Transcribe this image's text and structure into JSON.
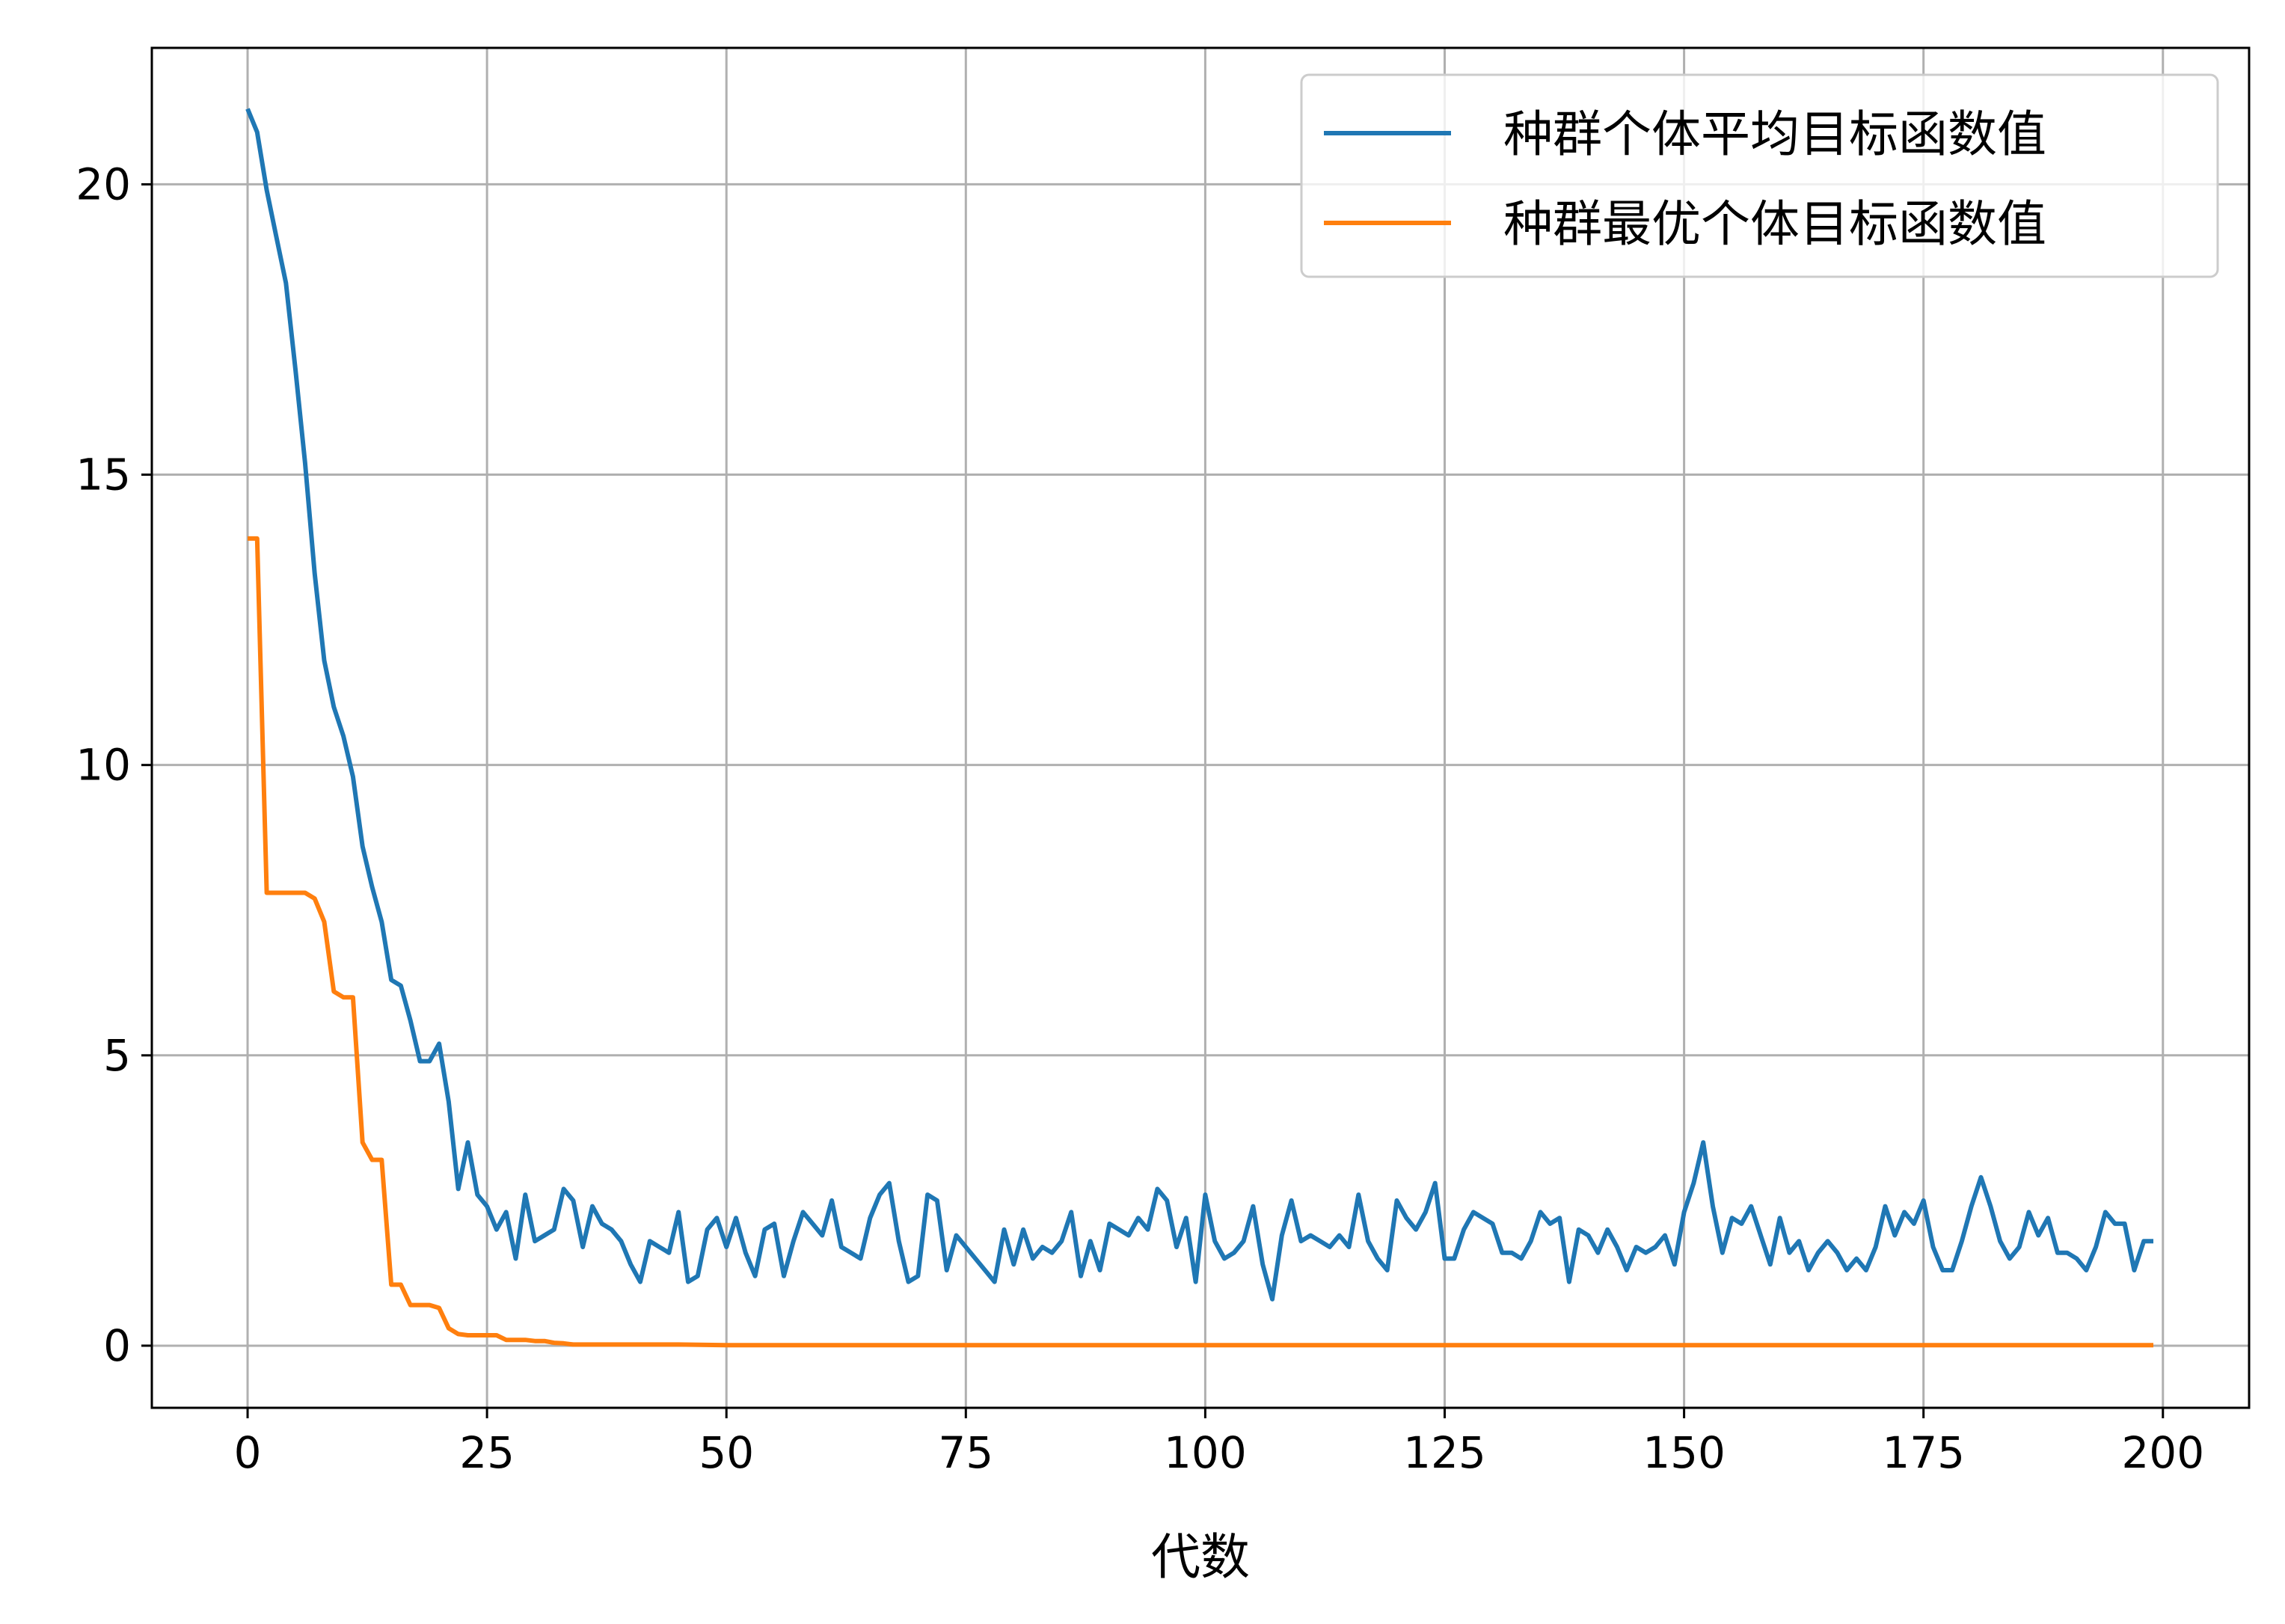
{
  "chart_data": {
    "type": "line",
    "title": "",
    "xlabel": "代数",
    "ylabel": "",
    "xlim": [
      -10,
      209
    ],
    "ylim": [
      -1.07,
      22.35
    ],
    "xticks": [
      0,
      25,
      50,
      75,
      100,
      125,
      150,
      175,
      200
    ],
    "xtick_labels": [
      "0",
      "25",
      "50",
      "75",
      "100",
      "125",
      "150",
      "175",
      "200"
    ],
    "yticks": [
      0,
      5,
      10,
      15,
      20
    ],
    "ytick_labels": [
      "0",
      "5",
      "10",
      "15",
      "20"
    ],
    "grid": true,
    "legend_position": "top-right",
    "series": [
      {
        "name": "种群个体平均目标函数值",
        "color": "#1f77b4",
        "x": [
          0,
          1,
          2,
          3,
          4,
          5,
          6,
          7,
          8,
          9,
          10,
          11,
          12,
          13,
          14,
          15,
          16,
          17,
          18,
          19,
          20,
          21,
          22,
          23,
          24,
          25,
          26,
          27,
          28,
          29,
          30,
          31,
          32,
          33,
          34,
          35,
          36,
          37,
          38,
          39,
          40,
          41,
          42,
          43,
          44,
          45,
          46,
          47,
          48,
          49,
          50,
          51,
          52,
          53,
          54,
          55,
          56,
          57,
          58,
          59,
          60,
          61,
          62,
          63,
          64,
          65,
          66,
          67,
          68,
          69,
          70,
          71,
          72,
          73,
          74,
          75,
          76,
          77,
          78,
          79,
          80,
          81,
          82,
          83,
          84,
          85,
          86,
          87,
          88,
          89,
          90,
          91,
          92,
          93,
          94,
          95,
          96,
          97,
          98,
          99,
          100,
          101,
          102,
          103,
          104,
          105,
          106,
          107,
          108,
          109,
          110,
          111,
          112,
          113,
          114,
          115,
          116,
          117,
          118,
          119,
          120,
          121,
          122,
          123,
          124,
          125,
          126,
          127,
          128,
          129,
          130,
          131,
          132,
          133,
          134,
          135,
          136,
          137,
          138,
          139,
          140,
          141,
          142,
          143,
          144,
          145,
          146,
          147,
          148,
          149,
          150,
          151,
          152,
          153,
          154,
          155,
          156,
          157,
          158,
          159,
          160,
          161,
          162,
          163,
          164,
          165,
          166,
          167,
          168,
          169,
          170,
          171,
          172,
          173,
          174,
          175,
          176,
          177,
          178,
          179,
          180,
          181,
          182,
          183,
          184,
          185,
          186,
          187,
          188,
          189,
          190,
          191,
          192,
          193,
          194,
          195,
          196,
          197,
          198,
          199
        ],
        "values": [
          21.3,
          20.9,
          19.9,
          19.1,
          18.3,
          16.8,
          15.2,
          13.3,
          11.8,
          11.0,
          10.5,
          9.8,
          8.6,
          7.9,
          7.3,
          6.3,
          6.2,
          5.6,
          4.9,
          4.9,
          5.2,
          4.2,
          2.7,
          3.5,
          2.6,
          2.4,
          2.0,
          2.3,
          1.5,
          2.6,
          1.8,
          1.9,
          2.0,
          2.7,
          2.5,
          1.7,
          2.4,
          2.1,
          2.0,
          1.8,
          1.4,
          1.1,
          1.8,
          1.7,
          1.6,
          2.3,
          1.1,
          1.2,
          2.0,
          2.2,
          1.7,
          2.2,
          1.6,
          1.2,
          2.0,
          2.1,
          1.2,
          1.8,
          2.3,
          2.1,
          1.9,
          2.5,
          1.7,
          1.6,
          1.5,
          2.2,
          2.6,
          2.8,
          1.8,
          1.1,
          1.2,
          2.6,
          2.5,
          1.3,
          1.9,
          1.7,
          1.5,
          1.3,
          1.1,
          2.0,
          1.4,
          2.0,
          1.5,
          1.7,
          1.6,
          1.8,
          2.3,
          1.2,
          1.8,
          1.3,
          2.1,
          2.0,
          1.9,
          2.2,
          2.0,
          2.7,
          2.5,
          1.7,
          2.2,
          1.1,
          2.6,
          1.8,
          1.5,
          1.6,
          1.8,
          2.4,
          1.4,
          0.8,
          1.9,
          2.5,
          1.8,
          1.9,
          1.8,
          1.7,
          1.9,
          1.7,
          2.6,
          1.8,
          1.5,
          1.3,
          2.5,
          2.2,
          2.0,
          2.3,
          2.8,
          1.5,
          1.5,
          2.0,
          2.3,
          2.2,
          2.1,
          1.6,
          1.6,
          1.5,
          1.8,
          2.3,
          2.1,
          2.2,
          1.1,
          2.0,
          1.9,
          1.6,
          2.0,
          1.7,
          1.3,
          1.7,
          1.6,
          1.7,
          1.9,
          1.4,
          2.3,
          2.8,
          3.5,
          2.4,
          1.6,
          2.2,
          2.1,
          2.4,
          1.9,
          1.4,
          2.2,
          1.6,
          1.8,
          1.3,
          1.6,
          1.8,
          1.6,
          1.3,
          1.5,
          1.3,
          1.7,
          2.4,
          1.9,
          2.3,
          2.1,
          2.5,
          1.7,
          1.3,
          1.3,
          1.8,
          2.4,
          2.9,
          2.4,
          1.8,
          1.5,
          1.7,
          2.3,
          1.9,
          2.2,
          1.6,
          1.6,
          1.5,
          1.3,
          1.7,
          2.3,
          2.1,
          2.1,
          1.3,
          1.8,
          1.8
        ]
      },
      {
        "name": "种群最优个体目标函数值",
        "color": "#ff7f0e",
        "x": [
          0,
          1,
          2,
          3,
          4,
          5,
          6,
          7,
          8,
          9,
          10,
          11,
          12,
          13,
          14,
          15,
          16,
          17,
          18,
          19,
          20,
          21,
          22,
          23,
          24,
          25,
          26,
          27,
          28,
          29,
          30,
          31,
          32,
          33,
          34,
          35,
          40,
          45,
          50,
          60,
          80,
          100,
          120,
          140,
          160,
          180,
          199
        ],
        "values": [
          13.9,
          13.9,
          7.8,
          7.8,
          7.8,
          7.8,
          7.8,
          7.7,
          7.3,
          6.1,
          6.0,
          6.0,
          3.5,
          3.2,
          3.2,
          1.05,
          1.05,
          0.7,
          0.7,
          0.7,
          0.65,
          0.3,
          0.2,
          0.18,
          0.18,
          0.18,
          0.18,
          0.1,
          0.1,
          0.1,
          0.08,
          0.08,
          0.05,
          0.04,
          0.02,
          0.02,
          0.02,
          0.02,
          0.01,
          0.01,
          0.01,
          0.01,
          0.01,
          0.01,
          0.01,
          0.01,
          0.01
        ]
      }
    ]
  }
}
